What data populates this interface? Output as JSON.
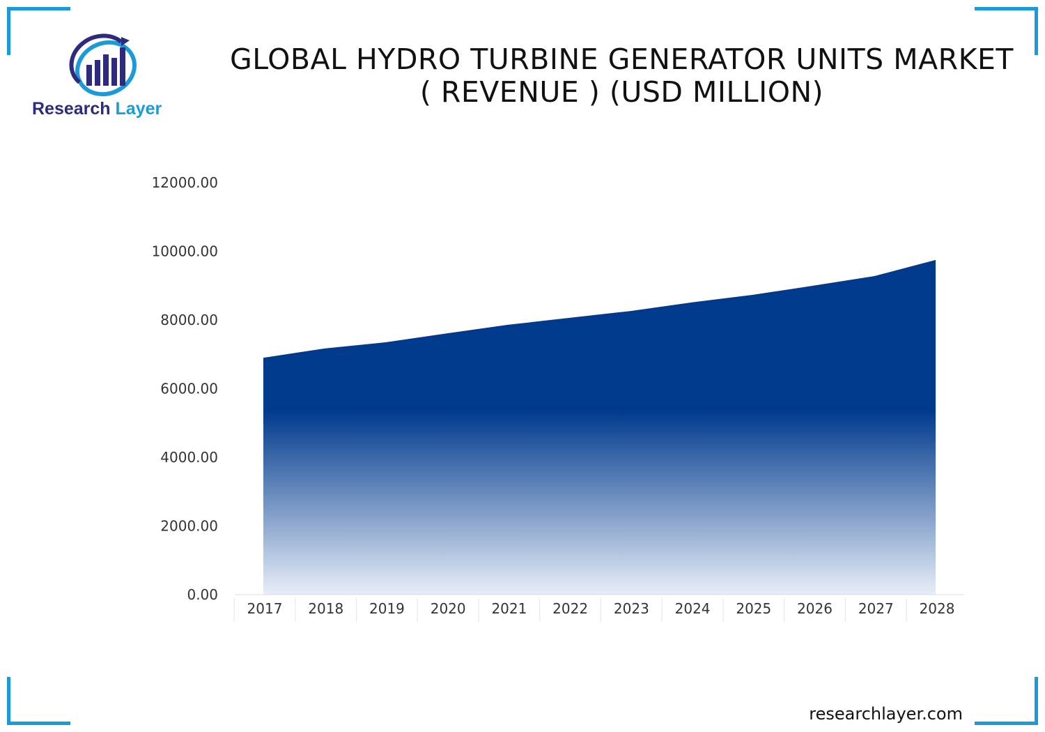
{
  "brand": {
    "logo_text_1": "Research",
    "logo_text_2": "Layer",
    "footer": "researchlayer.com",
    "accent": "#1a9ad6",
    "logo_dark": "#2e2a7d"
  },
  "chart_data": {
    "type": "area",
    "title_line1": "GLOBAL HYDRO TURBINE GENERATOR UNITS MARKET",
    "title_line2": "( REVENUE ) (USD MILLION)",
    "categories": [
      "2017",
      "2018",
      "2019",
      "2020",
      "2021",
      "2022",
      "2023",
      "2024",
      "2025",
      "2026",
      "2027",
      "2028"
    ],
    "values": [
      6900,
      7170,
      7350,
      7610,
      7860,
      8060,
      8260,
      8510,
      8730,
      9000,
      9280,
      9750
    ],
    "ylim": [
      0,
      12000
    ],
    "yticks": [
      "0.00",
      "2000.00",
      "4000.00",
      "6000.00",
      "8000.00",
      "10000.00",
      "12000.00"
    ],
    "grid": false,
    "fill_top_color": "#003a8c",
    "fill_bottom_color": "#e8eef8"
  }
}
